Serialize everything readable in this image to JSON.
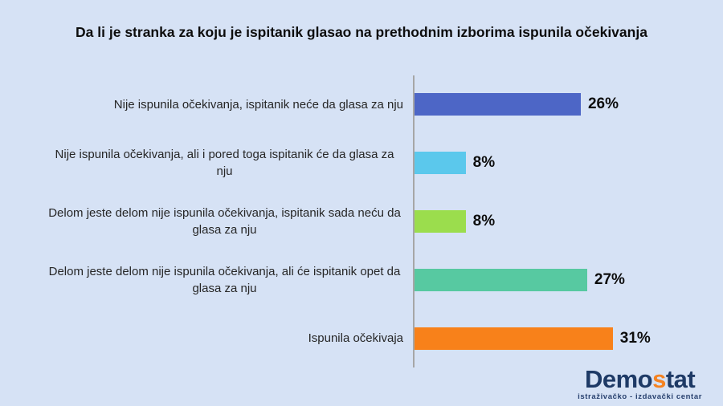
{
  "title": "Da li je stranka za koju je ispitanik glasao na prethodnim izborima ispunila očekivanja",
  "chart_data": {
    "type": "bar",
    "orientation": "horizontal",
    "title": "Da li je stranka za koju je ispitanik glasao na prethodnim izborima ispunila očekivanja",
    "categories": [
      "Nije ispunila očekivanja, ispitanik neće da glasa za nju",
      "Nije ispunila očekivanja, ali i pored toga ispitanik će da glasa za nju",
      "Delom jeste delom nije ispunila očekivanja, ispitanik sada neću da glasa za nju",
      "Delom jeste delom nije ispunila očekivanja, ali će ispitanik opet da glasa za nju",
      "Ispunila očekivaja"
    ],
    "values": [
      26,
      8,
      8,
      27,
      31
    ],
    "value_labels": [
      "26%",
      "8%",
      "8%",
      "27%",
      "31%"
    ],
    "bar_colors": [
      "#4d66c6",
      "#5bc8ec",
      "#9bdd4d",
      "#57c9a1",
      "#f8811a"
    ],
    "xlabel": "",
    "ylabel": "",
    "xlim": [
      0,
      45
    ],
    "grid": false,
    "legend": false,
    "value_label_position": "end-of-bar"
  },
  "branding": {
    "logo_prefix": "Demo",
    "logo_accent": "s",
    "logo_suffix": "tat",
    "tagline": "istraživačko - izdavački  centar",
    "logo_color": "#1e3a66",
    "accent_color": "#f58220"
  },
  "colors": {
    "background": "#d6e2f5",
    "axis_line": "#a6a6a6",
    "title_text": "#0d0d0d",
    "label_text": "#262626"
  }
}
